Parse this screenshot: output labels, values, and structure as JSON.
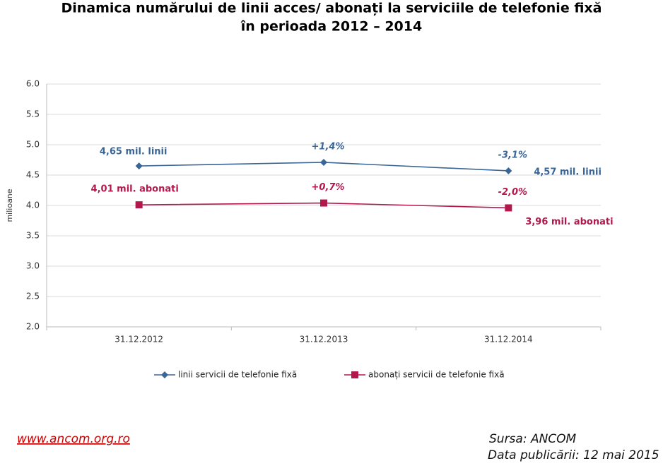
{
  "chart_data": {
    "type": "line",
    "title": "Dinamica numărului de linii acces/ abonați la serviciile de telefonie fixă",
    "subtitle": "în perioada 2012 – 2014",
    "y_label": "milioane",
    "categories": [
      "31.12.2012",
      "31.12.2013",
      "31.12.2014"
    ],
    "ylim": [
      2,
      6
    ],
    "yticks": [
      {
        "value": 2,
        "label": "2.0"
      },
      {
        "value": 2.5,
        "label": "2.5"
      },
      {
        "value": 3,
        "label": "3.0"
      },
      {
        "value": 3.5,
        "label": "3.5"
      },
      {
        "value": 4,
        "label": "4.0"
      },
      {
        "value": 4.5,
        "label": "4.5"
      },
      {
        "value": 5,
        "label": "5.0"
      },
      {
        "value": 5.5,
        "label": "5.5"
      },
      {
        "value": 6,
        "label": "6.0"
      }
    ],
    "grid": true,
    "series": [
      {
        "name": "linii servicii de telefonie fixă",
        "color": "#3a6597",
        "marker": "diamond",
        "values": [
          4.65,
          4.71,
          4.57
        ],
        "value_labels": [
          "4,65 mil. linii",
          null,
          "4,57 mil. linii"
        ],
        "change_labels": [
          null,
          "+1,4%",
          "-3,1%"
        ]
      },
      {
        "name": "abonați servicii de telefonie fixă",
        "color": "#b3184d",
        "marker": "square",
        "values": [
          4.01,
          4.04,
          3.96
        ],
        "value_labels": [
          "4,01 mil. abonati",
          null,
          "3,96 mil. abonati"
        ],
        "change_labels": [
          null,
          "+0,7%",
          "-2,0%"
        ]
      }
    ]
  },
  "footer": {
    "link": "www.ancom.org.ro",
    "source": "Sursa: ANCOM",
    "date": "Data publicării: 12 mai 2015"
  }
}
